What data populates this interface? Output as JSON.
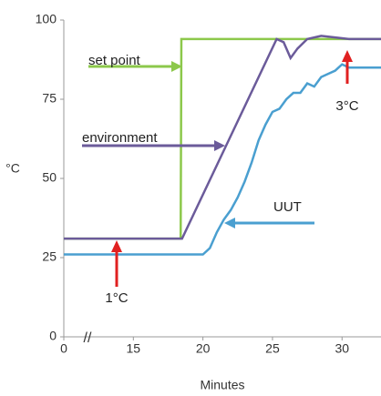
{
  "chart_data": {
    "type": "line",
    "ylabel": "°C",
    "xlabel": "Minutes",
    "xlim": [
      10,
      32.8
    ],
    "ylim": [
      0,
      100
    ],
    "xticks": [
      {
        "value": 10,
        "label": "0"
      },
      15,
      20,
      25,
      30
    ],
    "yticks": [
      0,
      25,
      50,
      75,
      100
    ],
    "series": [
      {
        "name": "set point",
        "color": "#8cc84b",
        "x": [
          10,
          18.4,
          18.45,
          32.8
        ],
        "values": [
          31,
          31,
          94,
          94
        ]
      },
      {
        "name": "environment",
        "color": "#6b5b9a",
        "x": [
          10,
          18.5,
          25.3,
          25.8,
          26.3,
          26.8,
          27.5,
          28.5,
          29.5,
          30.5,
          32.8
        ],
        "values": [
          31,
          31,
          94,
          93,
          88,
          91,
          94,
          95,
          94.5,
          94,
          94
        ]
      },
      {
        "name": "UUT",
        "color": "#4a9fd0",
        "x": [
          10,
          20,
          20.5,
          21,
          21.5,
          22,
          22.5,
          23,
          23.5,
          24,
          24.5,
          25,
          25.5,
          26,
          26.5,
          27,
          27.5,
          28,
          28.5,
          29,
          29.5,
          30,
          30.5,
          31,
          32.8
        ],
        "values": [
          26,
          26,
          28,
          33,
          37,
          40,
          44,
          49,
          55,
          62,
          67,
          71,
          72,
          75,
          77,
          77,
          80,
          79,
          82,
          83,
          84,
          86,
          85,
          85,
          85
        ]
      }
    ],
    "annotations": [
      "1°C",
      "3°C"
    ]
  }
}
